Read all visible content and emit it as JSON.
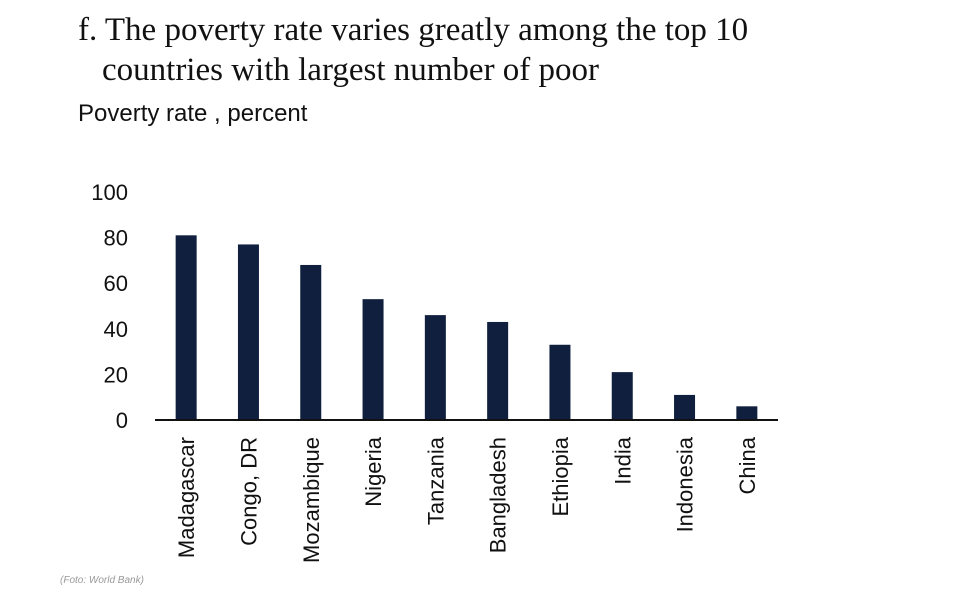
{
  "title_line1": "f. The poverty rate varies greatly among the top 10",
  "title_line2": "countries with largest number of poor",
  "footer": "(Foto: World Bank)",
  "colors": {
    "bar": "#0f1f3d",
    "axis": "#111111"
  },
  "chart_data": {
    "type": "bar",
    "title": "f. The poverty rate varies greatly among the top 10 countries with largest number of poor",
    "ylabel": "Poverty rate , percent",
    "xlabel": "",
    "categories": [
      "Madagascar",
      "Congo, DR",
      "Mozambique",
      "Nigeria",
      "Tanzania",
      "Bangladesh",
      "Ethiopia",
      "India",
      "Indonesia",
      "China"
    ],
    "values": [
      81,
      77,
      68,
      53,
      46,
      43,
      33,
      21,
      11,
      6
    ],
    "ylim": [
      0,
      100
    ],
    "yticks": [
      0,
      20,
      40,
      60,
      80,
      100
    ],
    "grid": false,
    "legend": "none"
  }
}
